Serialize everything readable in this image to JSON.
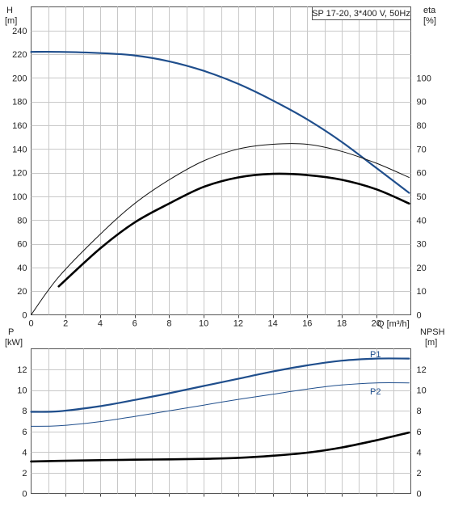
{
  "chart_data": [
    {
      "type": "line",
      "title": "SP 17-20, 3*400 V, 50Hz",
      "xlabel": "Q [m³/h]",
      "ylabel_left": [
        "H",
        "[m]"
      ],
      "ylabel_right": [
        "eta",
        "[%]"
      ],
      "xlim": [
        0,
        22
      ],
      "ylim_left": [
        0,
        260
      ],
      "ylim_right": [
        0,
        130
      ],
      "xticks": [
        "0",
        "2",
        "4",
        "6",
        "8",
        "10",
        "12",
        "14",
        "16",
        "18",
        "20"
      ],
      "yticks_left": [
        "0",
        "20",
        "40",
        "60",
        "80",
        "100",
        "120",
        "140",
        "160",
        "180",
        "200",
        "220",
        "240"
      ],
      "yticks_right": [
        "0",
        "10",
        "20",
        "30",
        "40",
        "50",
        "60",
        "70",
        "80",
        "90",
        "100"
      ],
      "grid": true,
      "series": [
        {
          "axis": "left",
          "color": "#1f4e8c",
          "width": 2.2,
          "x": [
            0,
            1.6,
            4,
            6,
            8,
            10,
            12,
            14,
            16,
            18,
            20,
            21.9
          ],
          "y": [
            222,
            222,
            221,
            219,
            214,
            206,
            195,
            181,
            165,
            146,
            124,
            103
          ]
        },
        {
          "axis": "right",
          "color": "#111111",
          "width": 1,
          "x": [
            0,
            1.6,
            4,
            6,
            8,
            10,
            12,
            14,
            16,
            18,
            20,
            21.9
          ],
          "y": [
            0,
            16,
            34,
            47,
            57,
            65,
            70,
            72,
            72,
            69,
            64,
            58
          ]
        },
        {
          "axis": "right",
          "color": "#000000",
          "width": 2.6,
          "x": [
            1.6,
            4,
            6,
            8,
            10,
            12,
            14,
            16,
            18,
            20,
            21.9
          ],
          "y": [
            12,
            28,
            39,
            47,
            54,
            58,
            59.5,
            59,
            57,
            53,
            47
          ]
        }
      ]
    },
    {
      "type": "line",
      "xlabel": "",
      "ylabel_left": [
        "P",
        "[kW]"
      ],
      "ylabel_right": [
        "NPSH",
        "[m]"
      ],
      "xlim": [
        0,
        22
      ],
      "ylim_left": [
        0,
        14
      ],
      "ylim_right": [
        0,
        14
      ],
      "yticks_left": [
        "0",
        "2",
        "4",
        "6",
        "8",
        "10",
        "12"
      ],
      "yticks_right": [
        "0",
        "2",
        "4",
        "6",
        "8",
        "10",
        "12"
      ],
      "grid": true,
      "series": [
        {
          "name": "P1",
          "axis": "left",
          "color": "#1f4e8c",
          "width": 2.2,
          "x": [
            0,
            1.6,
            4,
            6,
            8,
            10,
            12,
            14,
            16,
            18,
            20,
            21.9
          ],
          "y": [
            7.9,
            7.95,
            8.45,
            9.05,
            9.7,
            10.4,
            11.1,
            11.8,
            12.4,
            12.85,
            13.05,
            13.05
          ]
        },
        {
          "name": "P2",
          "axis": "left",
          "color": "#1f4e8c",
          "width": 1,
          "x": [
            0,
            1.6,
            4,
            6,
            8,
            10,
            12,
            14,
            16,
            18,
            20,
            21.9
          ],
          "y": [
            6.5,
            6.55,
            6.95,
            7.45,
            8.0,
            8.55,
            9.1,
            9.6,
            10.1,
            10.5,
            10.7,
            10.7
          ]
        },
        {
          "axis": "right",
          "color": "#000000",
          "width": 2.6,
          "x": [
            0,
            1.6,
            4,
            6,
            8,
            10,
            12,
            14,
            16,
            18,
            20,
            21.9
          ],
          "y": [
            3.1,
            3.15,
            3.22,
            3.27,
            3.3,
            3.35,
            3.45,
            3.65,
            3.95,
            4.45,
            5.15,
            5.9
          ]
        }
      ]
    }
  ]
}
